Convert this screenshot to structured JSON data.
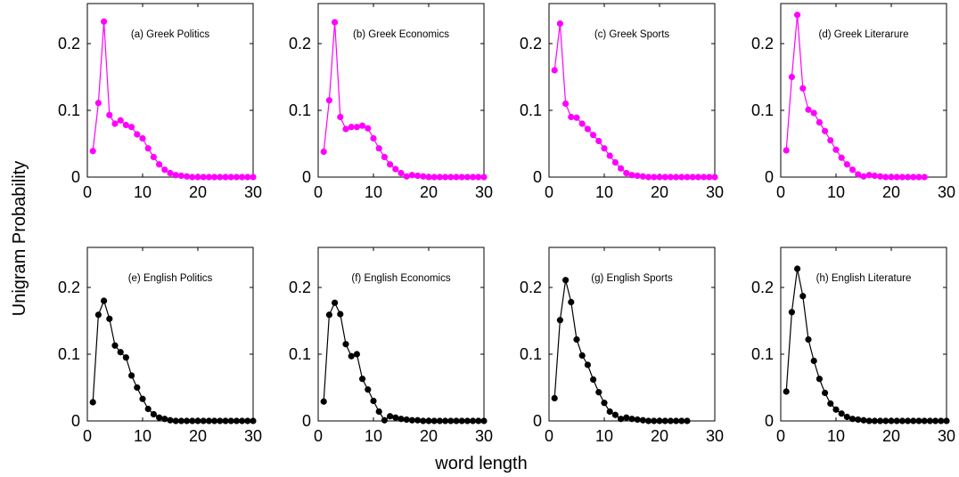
{
  "figure": {
    "ylabel": "Unigram Probability",
    "xlabel": "word length"
  },
  "chart_data": [
    {
      "type": "line",
      "title": "(a) Greek Politics",
      "color": "#ff00ff",
      "xlim": [
        0,
        30
      ],
      "ylim": [
        0,
        0.26
      ],
      "xticks": [
        0,
        10,
        20,
        30
      ],
      "yticks": [
        0,
        0.1,
        0.2
      ],
      "x": [
        1,
        2,
        3,
        4,
        5,
        6,
        7,
        8,
        9,
        10,
        11,
        12,
        13,
        14,
        15,
        16,
        17,
        18,
        19,
        20,
        21,
        22,
        23,
        24,
        25,
        26,
        27,
        28,
        29,
        30
      ],
      "y": [
        0.039,
        0.111,
        0.233,
        0.093,
        0.08,
        0.085,
        0.078,
        0.075,
        0.064,
        0.058,
        0.043,
        0.03,
        0.019,
        0.011,
        0.006,
        0.003,
        0.002,
        0.001,
        0,
        0,
        0,
        0,
        0,
        0,
        0,
        0,
        0,
        0,
        0,
        0
      ]
    },
    {
      "type": "line",
      "title": "(b) Greek Economics",
      "color": "#ff00ff",
      "xlim": [
        0,
        30
      ],
      "ylim": [
        0,
        0.26
      ],
      "xticks": [
        0,
        10,
        20,
        30
      ],
      "yticks": [
        0,
        0.1,
        0.2
      ],
      "x": [
        1,
        2,
        3,
        4,
        5,
        6,
        7,
        8,
        9,
        10,
        11,
        12,
        13,
        14,
        15,
        16,
        17,
        18,
        19,
        20,
        21,
        22,
        23,
        24,
        25,
        26,
        27,
        28,
        29,
        30
      ],
      "y": [
        0.038,
        0.115,
        0.232,
        0.09,
        0.072,
        0.075,
        0.075,
        0.077,
        0.073,
        0.058,
        0.043,
        0.03,
        0.019,
        0.012,
        0.006,
        0.001,
        0.003,
        0.002,
        0.001,
        0,
        0,
        0,
        0,
        0,
        0,
        0,
        0,
        0,
        0,
        0
      ]
    },
    {
      "type": "line",
      "title": "(c) Greek Sports",
      "color": "#ff00ff",
      "xlim": [
        0,
        30
      ],
      "ylim": [
        0,
        0.26
      ],
      "xticks": [
        0,
        10,
        20,
        30
      ],
      "yticks": [
        0,
        0.1,
        0.2
      ],
      "x": [
        1,
        2,
        3,
        4,
        5,
        6,
        7,
        8,
        9,
        10,
        11,
        12,
        13,
        14,
        15,
        16,
        17,
        18,
        19,
        20,
        21,
        22,
        23,
        24,
        25,
        26,
        27,
        28,
        29,
        30
      ],
      "y": [
        0.16,
        0.23,
        0.11,
        0.09,
        0.089,
        0.08,
        0.072,
        0.063,
        0.054,
        0.043,
        0.032,
        0.022,
        0.013,
        0.006,
        0.003,
        0.002,
        0.001,
        0,
        0,
        0,
        0,
        0,
        0,
        0,
        0,
        0,
        0,
        0,
        0,
        0
      ]
    },
    {
      "type": "line",
      "title": "(d) Greek Literarure",
      "color": "#ff00ff",
      "xlim": [
        0,
        30
      ],
      "ylim": [
        0,
        0.26
      ],
      "xticks": [
        0,
        10,
        20,
        30
      ],
      "yticks": [
        0,
        0.1,
        0.2
      ],
      "x": [
        1,
        2,
        3,
        4,
        5,
        6,
        7,
        8,
        9,
        10,
        11,
        12,
        13,
        14,
        15,
        16,
        17,
        18,
        19,
        20,
        21,
        22,
        23,
        24,
        25,
        26
      ],
      "y": [
        0.04,
        0.15,
        0.243,
        0.133,
        0.101,
        0.096,
        0.082,
        0.069,
        0.055,
        0.041,
        0.029,
        0.019,
        0.011,
        0.004,
        0.001,
        0.003,
        0.002,
        0.001,
        0,
        0,
        0,
        0,
        0,
        0,
        0,
        0
      ]
    },
    {
      "type": "line",
      "title": "(e) English Politics",
      "color": "#000000",
      "xlim": [
        0,
        30
      ],
      "ylim": [
        0,
        0.26
      ],
      "xticks": [
        0,
        10,
        20,
        30
      ],
      "yticks": [
        0,
        0.1,
        0.2
      ],
      "x": [
        1,
        2,
        3,
        4,
        5,
        6,
        7,
        8,
        9,
        10,
        11,
        12,
        13,
        14,
        15,
        16,
        17,
        18,
        19,
        20,
        21,
        22,
        23,
        24,
        25,
        26,
        27,
        28,
        29,
        30
      ],
      "y": [
        0.028,
        0.159,
        0.18,
        0.153,
        0.113,
        0.103,
        0.095,
        0.068,
        0.05,
        0.033,
        0.018,
        0.01,
        0.005,
        0.003,
        0.001,
        0,
        0,
        0,
        0,
        0,
        0,
        0,
        0,
        0,
        0,
        0,
        0,
        0,
        0,
        0
      ]
    },
    {
      "type": "line",
      "title": "(f) English Economics",
      "color": "#000000",
      "xlim": [
        0,
        30
      ],
      "ylim": [
        0,
        0.26
      ],
      "xticks": [
        0,
        10,
        20,
        30
      ],
      "yticks": [
        0,
        0.1,
        0.2
      ],
      "x": [
        1,
        2,
        3,
        4,
        5,
        6,
        7,
        8,
        9,
        10,
        11,
        12,
        13,
        14,
        15,
        16,
        17,
        18,
        19,
        20,
        21,
        22,
        23,
        24,
        25,
        26,
        27,
        28,
        29,
        30
      ],
      "y": [
        0.029,
        0.159,
        0.177,
        0.16,
        0.115,
        0.097,
        0.1,
        0.063,
        0.047,
        0.03,
        0.014,
        0.001,
        0.007,
        0.005,
        0.003,
        0.002,
        0.001,
        0.001,
        0,
        0,
        0,
        0,
        0,
        0,
        0,
        0,
        0,
        0,
        0,
        0
      ]
    },
    {
      "type": "line",
      "title": "(g) English Sports",
      "color": "#000000",
      "xlim": [
        0,
        30
      ],
      "ylim": [
        0,
        0.26
      ],
      "xticks": [
        0,
        10,
        20,
        30
      ],
      "yticks": [
        0,
        0.1,
        0.2
      ],
      "x": [
        1,
        2,
        3,
        4,
        5,
        6,
        7,
        8,
        9,
        10,
        11,
        12,
        13,
        14,
        15,
        16,
        17,
        18,
        19,
        20,
        21,
        22,
        23,
        24,
        25
      ],
      "y": [
        0.034,
        0.151,
        0.211,
        0.178,
        0.122,
        0.098,
        0.084,
        0.062,
        0.043,
        0.027,
        0.014,
        0.009,
        0.003,
        0.005,
        0.003,
        0.002,
        0.001,
        0,
        0,
        0,
        0,
        0,
        0,
        0,
        0
      ]
    },
    {
      "type": "line",
      "title": "(h) English Literature",
      "color": "#000000",
      "xlim": [
        0,
        30
      ],
      "ylim": [
        0,
        0.26
      ],
      "xticks": [
        0,
        10,
        20,
        30
      ],
      "yticks": [
        0,
        0.1,
        0.2
      ],
      "x": [
        1,
        2,
        3,
        4,
        5,
        6,
        7,
        8,
        9,
        10,
        11,
        12,
        13,
        14,
        15,
        16,
        17,
        18,
        19,
        20,
        21,
        22,
        23,
        24,
        25,
        26,
        27,
        28,
        29,
        30
      ],
      "y": [
        0.044,
        0.163,
        0.228,
        0.187,
        0.122,
        0.09,
        0.063,
        0.042,
        0.026,
        0.017,
        0.011,
        0.006,
        0.003,
        0.002,
        0.001,
        0,
        0,
        0,
        0,
        0,
        0,
        0,
        0,
        0,
        0,
        0,
        0,
        0,
        0,
        0
      ]
    }
  ]
}
